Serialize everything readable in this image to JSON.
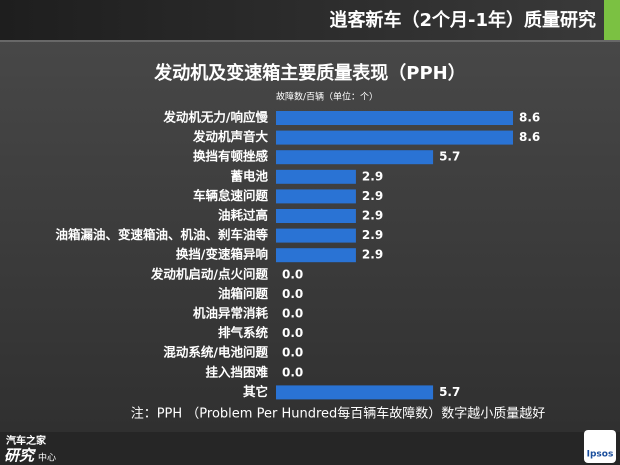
{
  "header": {
    "title": "逍客新车（2个月-1年）质量研究"
  },
  "chart_data": {
    "type": "bar",
    "orientation": "horizontal",
    "title": "发动机及变速箱主要质量表现（PPH）",
    "subtitle": "故障数/百辆（单位：个）",
    "categories": [
      "发动机无力/响应慢",
      "发动机声音大",
      "换挡有顿挫感",
      "蓄电池",
      "车辆怠速问题",
      "油耗过高",
      "油箱漏油、变速箱油、机油、刹车油等",
      "换挡/变速箱异响",
      "发动机启动/点火问题",
      "油箱问题",
      "机油异常消耗",
      "排气系统",
      "混动系统/电池问题",
      "挂入挡困难",
      "其它"
    ],
    "values": [
      8.6,
      8.6,
      5.7,
      2.9,
      2.9,
      2.9,
      2.9,
      2.9,
      0,
      0,
      0,
      0,
      0,
      0,
      5.7
    ],
    "value_labels": [
      "8.6",
      "8.6",
      "5.7",
      "2.9",
      "2.9",
      "2.9",
      "2.9",
      "2.9",
      "0.0",
      "0.0",
      "0.0",
      "0.0",
      "0.0",
      "0.0",
      "5.7"
    ],
    "color": "#2a73d4",
    "note": "注：PPH （Problem Per Hundred每百辆车故障数）数字越小质量越好"
  },
  "footer": {
    "logo_left_top": "汽车之家",
    "logo_left_bottom": "研究",
    "logo_left_small": "中心",
    "logo_right": "Ipsos"
  }
}
